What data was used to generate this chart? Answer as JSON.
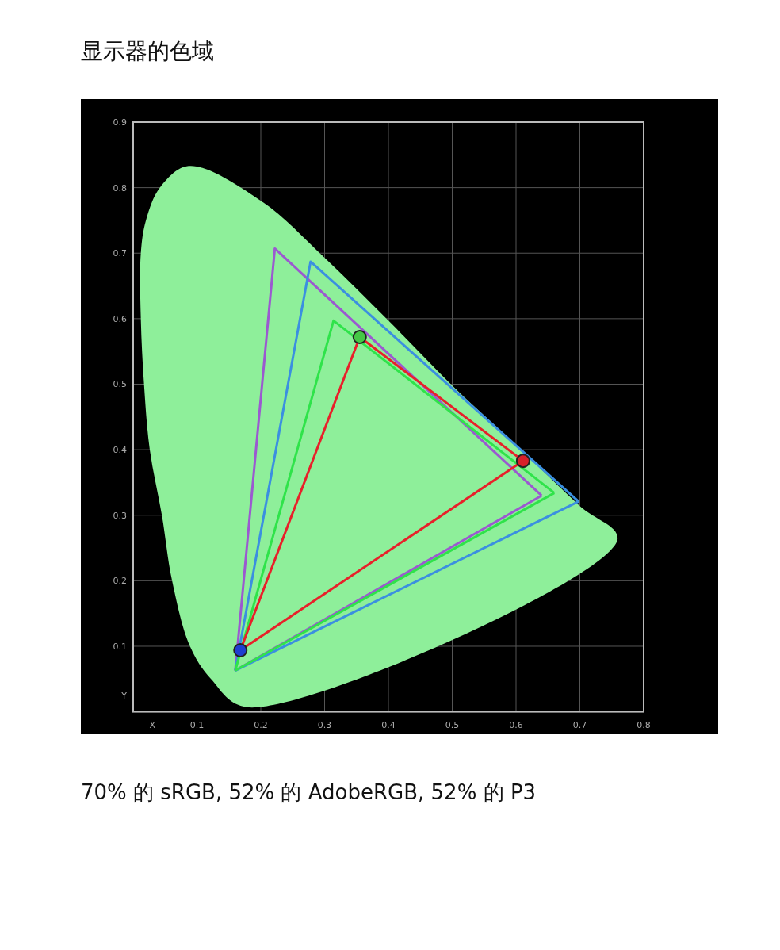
{
  "chart_data": {
    "type": "line",
    "title": "显示器的色域",
    "xlabel": "X",
    "ylabel": "Y",
    "xlim": [
      0,
      0.8
    ],
    "ylim": [
      0,
      0.9
    ],
    "xticks": [
      0.1,
      0.2,
      0.3,
      0.4,
      0.5,
      0.6,
      0.7,
      0.8
    ],
    "yticks": [
      0.1,
      0.2,
      0.3,
      0.4,
      0.5,
      0.6,
      0.7,
      0.8,
      0.9
    ],
    "grid": true,
    "series": [
      {
        "type": "area",
        "color": "#8eef9a",
        "x": [
          0.179,
          0.122,
          0.089,
          0.061,
          0.045,
          0.026,
          0.017,
          0.012,
          0.012,
          0.02,
          0.042,
          0.087,
          0.2,
          0.3,
          0.4,
          0.5,
          0.6,
          0.7,
          0.759,
          0.179
        ],
        "values": [
          0.007,
          0.05,
          0.1,
          0.2,
          0.3,
          0.4,
          0.5,
          0.6,
          0.7,
          0.75,
          0.8,
          0.833,
          0.78,
          0.693,
          0.597,
          0.498,
          0.407,
          0.314,
          0.263,
          0.007
        ]
      },
      {
        "color": "#9b59d0",
        "x": [
          0.16,
          0.222,
          0.64
        ],
        "values": [
          0.063,
          0.707,
          0.33
        ]
      },
      {
        "color": "#9b59d0",
        "x": [
          0.16,
          0.64
        ],
        "values": [
          0.063,
          0.33
        ]
      },
      {
        "color": "#3b8fe0",
        "x": [
          0.16,
          0.278,
          0.698
        ],
        "values": [
          0.063,
          0.687,
          0.321
        ]
      },
      {
        "color": "#3b8fe0",
        "x": [
          0.16,
          0.698
        ],
        "values": [
          0.063,
          0.321
        ]
      },
      {
        "color": "#2fe34a",
        "x": [
          0.16,
          0.314,
          0.66
        ],
        "values": [
          0.063,
          0.597,
          0.334
        ]
      },
      {
        "color": "#2fe34a",
        "x": [
          0.16,
          0.66
        ],
        "values": [
          0.063,
          0.334
        ]
      },
      {
        "color": "#e8202a",
        "x": [
          0.168,
          0.355,
          0.611
        ],
        "values": [
          0.094,
          0.572,
          0.383
        ]
      },
      {
        "color": "#e8202a",
        "x": [
          0.168,
          0.611
        ],
        "values": [
          0.094,
          0.383
        ]
      },
      {
        "type": "scatter",
        "marker": "circle",
        "colors": [
          "#1f3fd0",
          "#45c845",
          "#d8202a"
        ],
        "x": [
          0.168,
          0.355,
          0.611
        ],
        "values": [
          0.094,
          0.572,
          0.383
        ]
      }
    ],
    "annotations": [
      "70% 的 sRGB, 52% 的 AdobeRGB, 52% 的 P3"
    ]
  }
}
